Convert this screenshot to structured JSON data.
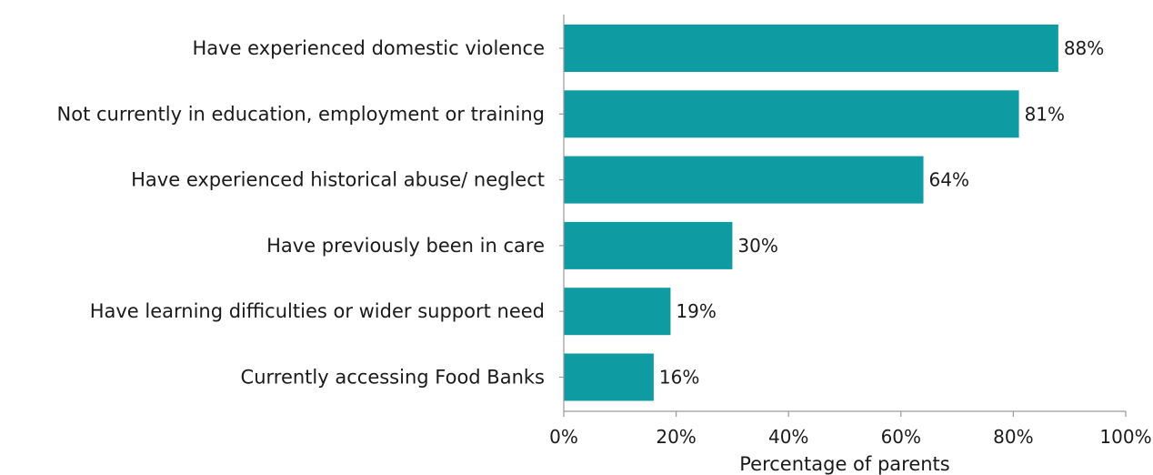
{
  "chart_data": {
    "type": "bar",
    "orientation": "horizontal",
    "title": "",
    "xlabel": "Percentage of parents",
    "ylabel": "",
    "xlim": [
      0,
      100
    ],
    "x_ticks": [
      "0%",
      "20%",
      "40%",
      "60%",
      "80%",
      "100%"
    ],
    "x_tick_values": [
      0,
      20,
      40,
      60,
      80,
      100
    ],
    "grid": false,
    "bar_color": "#0e9ba2",
    "categories": [
      "Have experienced domestic violence",
      "Not currently in education, employment or training",
      "Have experienced historical abuse/ neglect",
      "Have previously been in care",
      "Have learning difficulties or wider support need",
      "Currently accessing Food Banks"
    ],
    "values": [
      88,
      81,
      64,
      30,
      19,
      16
    ],
    "data_labels": [
      "88%",
      "81%",
      "64%",
      "30%",
      "19%",
      "16%"
    ]
  }
}
